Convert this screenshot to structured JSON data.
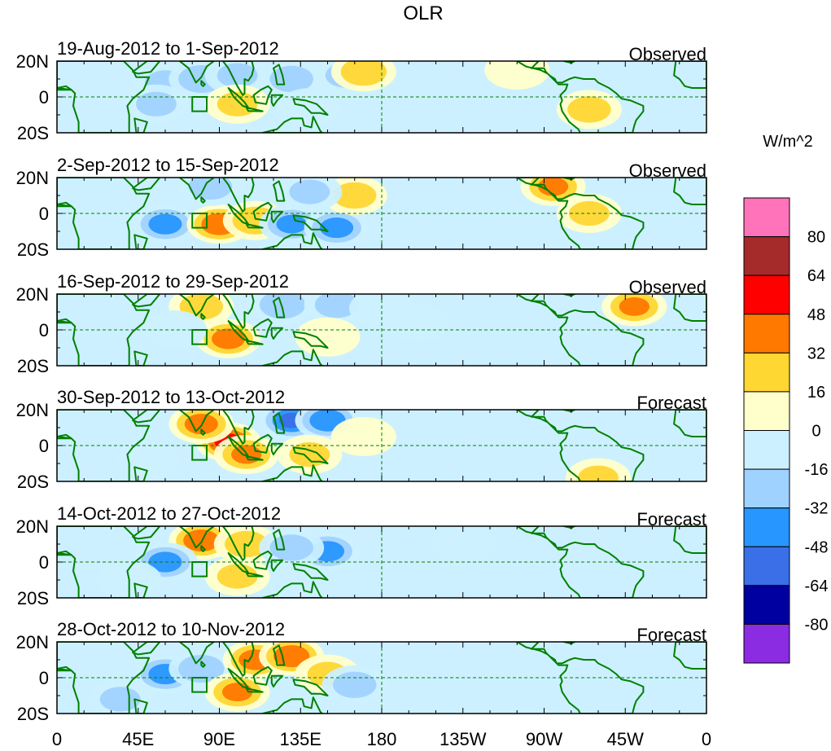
{
  "chart_data": {
    "type": "heatmap",
    "title": "OLR",
    "units_label": "W/m^2",
    "x_ticks": [
      "0",
      "45E",
      "90E",
      "135E",
      "180",
      "135W",
      "90W",
      "45W",
      "0"
    ],
    "y_ticks": [
      "20N",
      "0",
      "20S"
    ],
    "lat_range": [
      -20,
      20
    ],
    "lon_range": [
      0,
      360
    ],
    "panels": [
      {
        "period": "19-Aug-2012 to 1-Sep-2012",
        "kind": "Observed",
        "anomalies": [
          {
            "lon": 60,
            "lat": 8,
            "value": -20
          },
          {
            "lon": 80,
            "lat": 10,
            "value": -30
          },
          {
            "lon": 100,
            "lat": 12,
            "value": -20
          },
          {
            "lon": 130,
            "lat": 10,
            "value": -25
          },
          {
            "lon": 160,
            "lat": 12,
            "value": -20
          },
          {
            "lon": 170,
            "lat": 14,
            "value": 30
          },
          {
            "lon": 55,
            "lat": -4,
            "value": -20
          },
          {
            "lon": 100,
            "lat": -4,
            "value": 20
          },
          {
            "lon": 140,
            "lat": -6,
            "value": -15
          },
          {
            "lon": 295,
            "lat": -7,
            "value": 25
          },
          {
            "lon": 255,
            "lat": 15,
            "value": 8
          }
        ]
      },
      {
        "period": "2-Sep-2012 to 15-Sep-2012",
        "kind": "Observed",
        "anomalies": [
          {
            "lon": 60,
            "lat": -6,
            "value": -40
          },
          {
            "lon": 90,
            "lat": -6,
            "value": 45
          },
          {
            "lon": 110,
            "lat": -4,
            "value": 30
          },
          {
            "lon": 130,
            "lat": -6,
            "value": -35
          },
          {
            "lon": 155,
            "lat": -8,
            "value": -40
          },
          {
            "lon": 165,
            "lat": 10,
            "value": 25
          },
          {
            "lon": 85,
            "lat": 15,
            "value": -25
          },
          {
            "lon": 275,
            "lat": 15,
            "value": 35
          },
          {
            "lon": 295,
            "lat": 0,
            "value": 20
          },
          {
            "lon": 140,
            "lat": 12,
            "value": -20
          }
        ]
      },
      {
        "period": "16-Sep-2012 to 29-Sep-2012",
        "kind": "Observed",
        "anomalies": [
          {
            "lon": 80,
            "lat": 13,
            "value": 25
          },
          {
            "lon": 95,
            "lat": -5,
            "value": 40
          },
          {
            "lon": 125,
            "lat": 14,
            "value": -30
          },
          {
            "lon": 155,
            "lat": 14,
            "value": -25
          },
          {
            "lon": 180,
            "lat": 12,
            "value": -15
          },
          {
            "lon": 320,
            "lat": 13,
            "value": 35
          },
          {
            "lon": 65,
            "lat": 0,
            "value": -15
          },
          {
            "lon": 150,
            "lat": -4,
            "value": 15
          },
          {
            "lon": 200,
            "lat": 4,
            "value": -10
          }
        ]
      },
      {
        "period": "30-Sep-2012 to 13-Oct-2012",
        "kind": "Forecast",
        "anomalies": [
          {
            "lon": 95,
            "lat": 2,
            "value": 55
          },
          {
            "lon": 80,
            "lat": 12,
            "value": 40
          },
          {
            "lon": 105,
            "lat": -5,
            "value": 35
          },
          {
            "lon": 130,
            "lat": 14,
            "value": -50
          },
          {
            "lon": 150,
            "lat": 14,
            "value": -45
          },
          {
            "lon": 140,
            "lat": -5,
            "value": 20
          },
          {
            "lon": 170,
            "lat": 5,
            "value": 15
          },
          {
            "lon": 50,
            "lat": -8,
            "value": -15
          },
          {
            "lon": 300,
            "lat": -18,
            "value": 20
          }
        ]
      },
      {
        "period": "14-Oct-2012 to 27-Oct-2012",
        "kind": "Forecast",
        "anomalies": [
          {
            "lon": 80,
            "lat": 12,
            "value": 45
          },
          {
            "lon": 105,
            "lat": 10,
            "value": 25
          },
          {
            "lon": 60,
            "lat": 0,
            "value": -40
          },
          {
            "lon": 150,
            "lat": 6,
            "value": -40
          },
          {
            "lon": 130,
            "lat": 8,
            "value": -25
          },
          {
            "lon": 100,
            "lat": -8,
            "value": 20
          },
          {
            "lon": 225,
            "lat": 10,
            "value": -15
          },
          {
            "lon": 40,
            "lat": -10,
            "value": -15
          }
        ]
      },
      {
        "period": "28-Oct-2012 to 10-Nov-2012",
        "kind": "Forecast",
        "anomalies": [
          {
            "lon": 60,
            "lat": 2,
            "value": -40
          },
          {
            "lon": 80,
            "lat": 5,
            "value": -30
          },
          {
            "lon": 110,
            "lat": 10,
            "value": 40
          },
          {
            "lon": 130,
            "lat": 12,
            "value": 45
          },
          {
            "lon": 100,
            "lat": -8,
            "value": 35
          },
          {
            "lon": 150,
            "lat": 2,
            "value": 20
          },
          {
            "lon": 165,
            "lat": -4,
            "value": -25
          },
          {
            "lon": 35,
            "lat": -12,
            "value": -20
          }
        ]
      }
    ],
    "colorbar": {
      "tick_labels": [
        "80",
        "64",
        "48",
        "32",
        "16",
        "0",
        "-16",
        "-32",
        "-48",
        "-64",
        "-80"
      ],
      "levels": [
        {
          "min": 80,
          "max": 999,
          "color": "#FF73BB"
        },
        {
          "min": 64,
          "max": 80,
          "color": "#A52A2A"
        },
        {
          "min": 48,
          "max": 64,
          "color": "#FF0000"
        },
        {
          "min": 32,
          "max": 48,
          "color": "#FF7800"
        },
        {
          "min": 16,
          "max": 32,
          "color": "#FFD733"
        },
        {
          "min": 0,
          "max": 16,
          "color": "#FFFFCC"
        },
        {
          "min": -16,
          "max": 0,
          "color": "#CCF0FF"
        },
        {
          "min": -32,
          "max": -16,
          "color": "#A0D2FF"
        },
        {
          "min": -48,
          "max": -32,
          "color": "#2896FF"
        },
        {
          "min": -64,
          "max": -48,
          "color": "#3A6FE8"
        },
        {
          "min": -80,
          "max": -64,
          "color": "#0000A0"
        },
        {
          "min": -999,
          "max": -80,
          "color": "#8B2BE2"
        }
      ]
    },
    "coast_color": "#008000",
    "guide_color": "#008000"
  }
}
